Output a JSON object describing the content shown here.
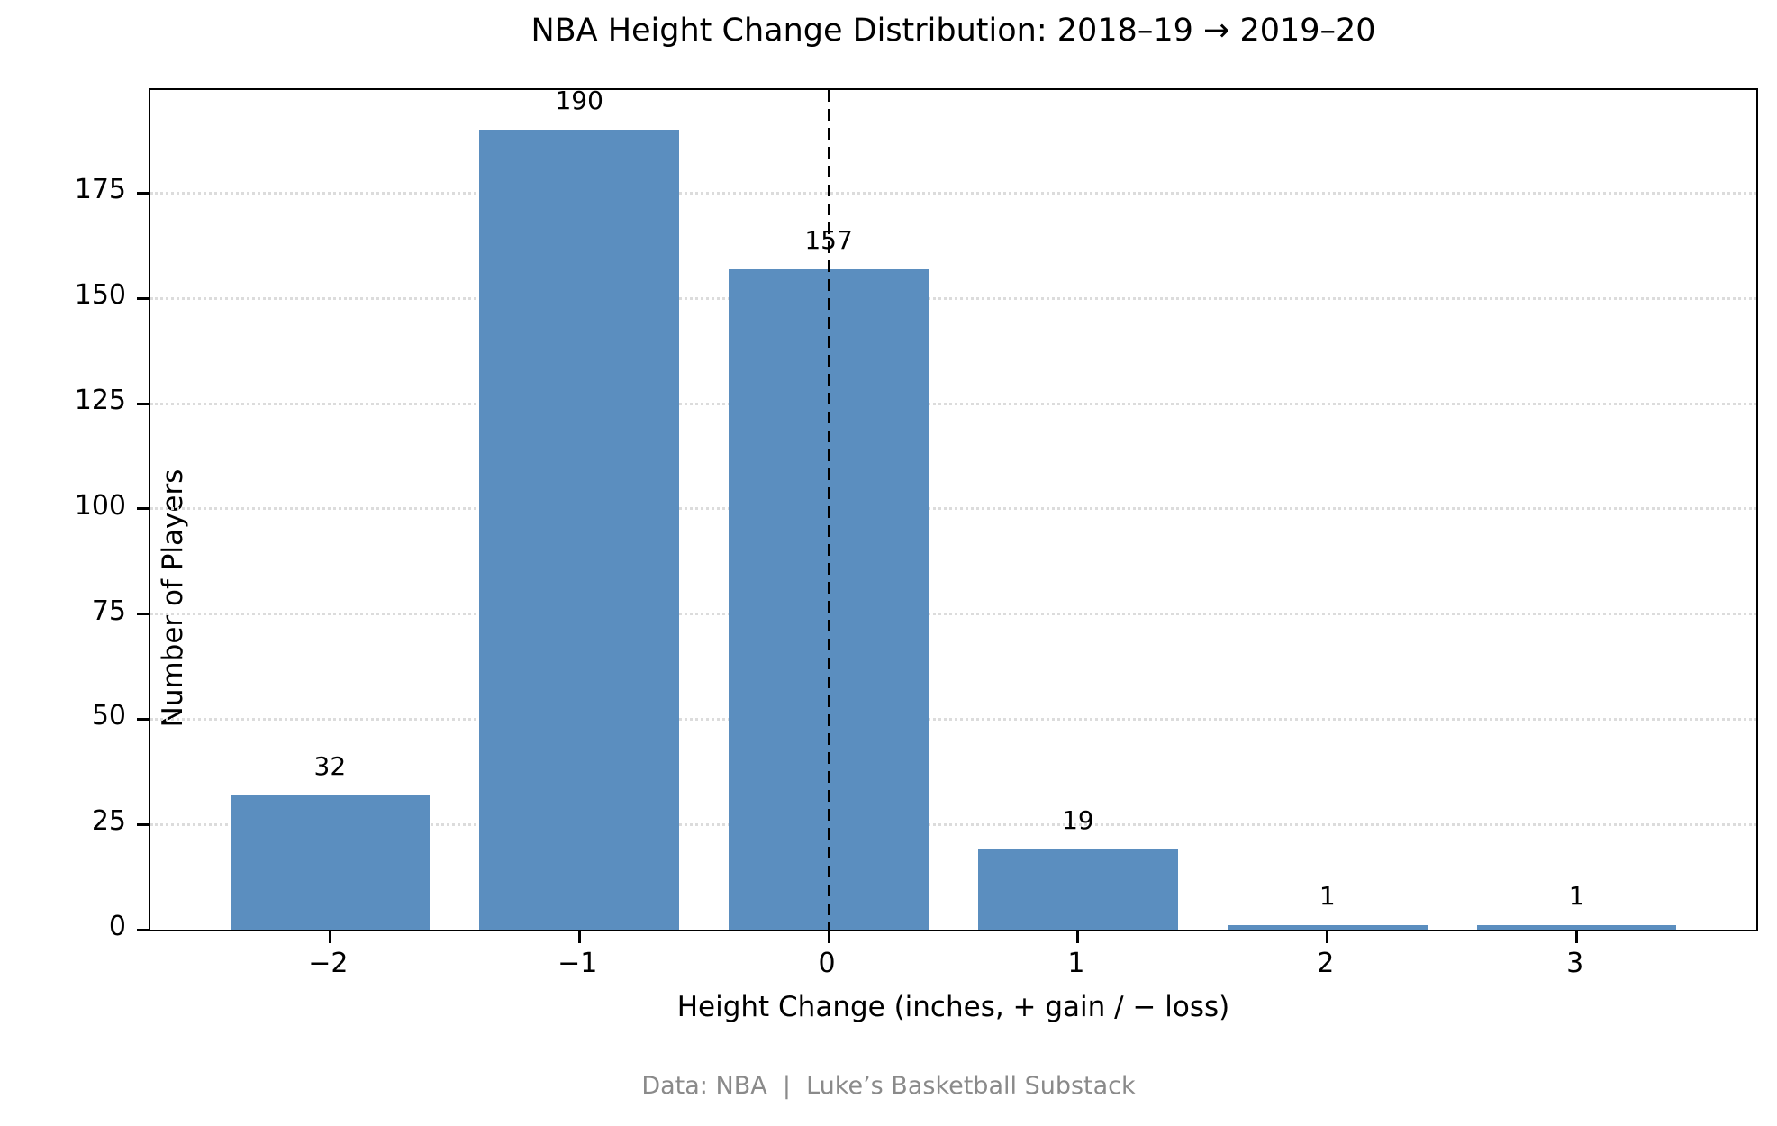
{
  "title": "NBA Height Change Distribution: 2018–19 → 2019–20",
  "footer": "Data: NBA  |  Luke’s Basketball Substack",
  "chart_data": {
    "type": "bar",
    "title": "NBA Height Change Distribution: 2018–19 → 2019–20",
    "xlabel": "Height Change (inches, + gain / − loss)",
    "ylabel": "Number of Players",
    "categories": [
      -2,
      -1,
      0,
      1,
      2,
      3
    ],
    "category_labels": [
      "−2",
      "−1",
      "0",
      "1",
      "2",
      "3"
    ],
    "values": [
      32,
      190,
      157,
      19,
      1,
      1
    ],
    "bar_value_labels": [
      "32",
      "190",
      "157",
      "19",
      "1",
      "1"
    ],
    "yticks": [
      0,
      25,
      50,
      75,
      100,
      125,
      150,
      175
    ],
    "ylim": [
      0,
      199.5
    ],
    "xlim": [
      -2.72,
      3.72
    ],
    "bar_width": 0.8,
    "bar_color": "#5b8ebf",
    "grid": true,
    "grid_style": "dotted",
    "grid_color": "#dcdcdc",
    "reference_line_x": 0,
    "reference_line_style": "dashed",
    "reference_line_color": "#000000",
    "legend": "none"
  }
}
